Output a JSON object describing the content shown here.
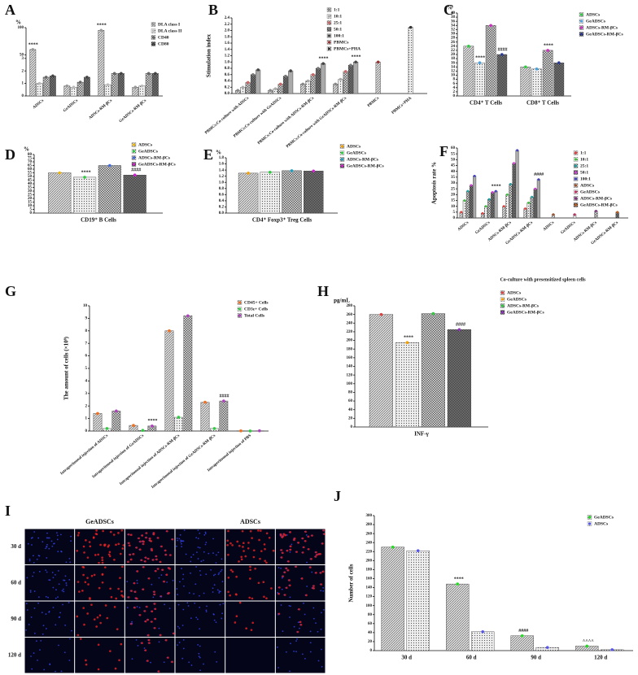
{
  "chart_data": [
    {
      "panel": "A",
      "type": "bar",
      "y_label": "%",
      "categories": [
        "ADSCs",
        "GeADSCs",
        "ADSCs-RM-βCs",
        "GeADSCs-RM-βCs"
      ],
      "series": [
        {
          "name": "DLA class I",
          "color": "#999999",
          "values": [
            60,
            0.8,
            95,
            0.7
          ]
        },
        {
          "name": "DLA class II",
          "color": "#bbbbbb",
          "values": [
            1,
            0.7,
            0.9,
            0.8
          ]
        },
        {
          "name": "CD40",
          "color": "#666666",
          "values": [
            1.5,
            1.1,
            1.8,
            1.8
          ]
        },
        {
          "name": "CD80",
          "color": "#444444",
          "values": [
            1.6,
            1.5,
            1.8,
            1.8
          ]
        }
      ],
      "ylim": [
        0,
        100
      ],
      "ybreak": [
        3,
        50
      ],
      "yticks": [
        0,
        1,
        2,
        3,
        50,
        100
      ],
      "annotations": [
        {
          "text": "****",
          "category": 0,
          "series": 0
        },
        {
          "text": "****",
          "category": 2,
          "series": 0
        }
      ]
    },
    {
      "panel": "B",
      "type": "bar",
      "y_label": "Stimulation index",
      "categories": [
        "PBMCs:Co-culture with ADSCs",
        "PBMCs:Co-culture with GeADSCs",
        "PBMCs:Co-culture with ADSCs-RM-βCs",
        "PBMCs:Co-culture with GeADSCs-RM-βCs",
        "PBMCs",
        "PBMCs+PHA"
      ],
      "series": [
        {
          "name": "1:1",
          "color": "#888888",
          "values": [
            0.1,
            0.1,
            0.3,
            0.3,
            null,
            null
          ]
        },
        {
          "name": "10:1",
          "color": "#aaaaaa",
          "values": [
            0.2,
            0.15,
            0.4,
            0.45,
            null,
            null
          ]
        },
        {
          "name": "25:1",
          "color": "#cc6666",
          "values": [
            0.35,
            0.3,
            0.6,
            0.7,
            null,
            null
          ]
        },
        {
          "name": "50:1",
          "color": "#777777",
          "values": [
            0.6,
            0.55,
            0.8,
            0.9,
            null,
            null
          ]
        },
        {
          "name": "100:1",
          "color": "#444444",
          "values": [
            0.75,
            0.72,
            0.95,
            1.0,
            null,
            null
          ]
        },
        {
          "name": "PBMCs",
          "color": "#993333",
          "values": [
            null,
            null,
            null,
            null,
            1.0,
            null
          ]
        },
        {
          "name": "PBMCs+PHA",
          "color": "#333333",
          "values": [
            null,
            null,
            null,
            null,
            null,
            2.1
          ]
        }
      ],
      "ylim": [
        0,
        2.4
      ],
      "yticks": [
        {
          "value": 0,
          "label": "0.0"
        },
        0.2,
        0.4,
        0.6,
        0.8,
        {
          "value": 1,
          "label": "1.0"
        },
        1.2,
        1.4,
        1.6,
        1.8,
        {
          "value": 2,
          "label": "2.0"
        },
        2.2,
        2.4
      ],
      "annotations": [
        {
          "text": "****",
          "category": 2,
          "series": 4
        },
        {
          "text": "****",
          "category": 3,
          "series": 4
        }
      ]
    },
    {
      "panel": "C",
      "type": "bar",
      "y_label": "%",
      "categories": [
        "CD4⁺ T Cells",
        "CD8⁺ T Cells"
      ],
      "series": [
        {
          "name": "ADSCs",
          "color": "#2ecc40",
          "values": [
            24,
            14
          ]
        },
        {
          "name": "GeADSCs",
          "color": "#4aa3df",
          "values": [
            16,
            13
          ]
        },
        {
          "name": "ADSCs-RM-βCs",
          "color": "#d030c0",
          "values": [
            34,
            22
          ]
        },
        {
          "name": "GeADSCs-RM-βCs",
          "color": "#2a3a9a",
          "values": [
            20,
            16
          ]
        }
      ],
      "ylim": [
        0,
        40
      ],
      "yticks": [
        0,
        2,
        4,
        6,
        8,
        10,
        12,
        14,
        16,
        18,
        20,
        22,
        24,
        26,
        28,
        30,
        32,
        34,
        36,
        38,
        40
      ],
      "annotations": [
        {
          "text": "****",
          "category": 0,
          "series": 1
        },
        {
          "text": "####",
          "category": 0,
          "series": 3
        },
        {
          "text": "****",
          "category": 1,
          "series": 2
        }
      ]
    },
    {
      "panel": "D",
      "type": "bar",
      "y_label": "%",
      "categories": [
        "CD19⁺ B Cells"
      ],
      "series": [
        {
          "name": "ADSCs",
          "color": "#f5b700",
          "values": [
            55
          ]
        },
        {
          "name": "GeADSCs",
          "color": "#2ecc40",
          "values": [
            49
          ]
        },
        {
          "name": "ADSCs-RM-βCs",
          "color": "#4169e1",
          "values": [
            65
          ]
        },
        {
          "name": "GeADSCs-RM-βCs",
          "color": "#d020d0",
          "values": [
            52
          ]
        }
      ],
      "ylim": [
        0,
        80
      ],
      "yticks": [
        0,
        5,
        10,
        15,
        20,
        25,
        30,
        35,
        40,
        45,
        50,
        55,
        60,
        65,
        70,
        75,
        80
      ],
      "annotations": [
        {
          "text": "****",
          "category": 0,
          "series": 1
        },
        {
          "text": "####",
          "category": 0,
          "series": 3
        }
      ]
    },
    {
      "panel": "E",
      "type": "bar",
      "y_label": "%",
      "categories": [
        "CD4⁺ Foxp3⁺ Treg Cells"
      ],
      "series": [
        {
          "name": "ADSCs",
          "color": "#f5a000",
          "values": [
            1.3
          ]
        },
        {
          "name": "GeADSCs",
          "color": "#2ecc40",
          "values": [
            1.33
          ]
        },
        {
          "name": "ADSCs-RM-βCs",
          "color": "#1fa0c0",
          "values": [
            1.38
          ]
        },
        {
          "name": "GeADSCs-RM-βCs",
          "color": "#d020d0",
          "values": [
            1.37
          ]
        }
      ],
      "ylim": [
        0,
        1.8
      ],
      "yticks": [
        {
          "value": 0,
          "label": "0.0"
        },
        0.2,
        0.4,
        0.6,
        0.8,
        {
          "value": 1,
          "label": "1.0"
        },
        1.2,
        1.4,
        1.6,
        1.8
      ],
      "annotations": []
    },
    {
      "panel": "F",
      "type": "bar",
      "y_label": "Apoptosis rate %",
      "x_label": "Co-culture with presensitized spleen cells",
      "categories": [
        "ADSCs",
        "GeADSCs",
        "ADSCs-RM-βCs",
        "GeADSCs-RM-βCs",
        "ADSCs",
        "GeADSCs",
        "ADSCs-RM-βCs",
        "GeADSCs-RM-βCs"
      ],
      "series": [
        {
          "name": "1:1",
          "color": "#e04040",
          "values": [
            5,
            4,
            10,
            8,
            null,
            null,
            null,
            null
          ]
        },
        {
          "name": "10:1",
          "color": "#40c040",
          "values": [
            15,
            10,
            20,
            13,
            null,
            null,
            null,
            null
          ]
        },
        {
          "name": "25:1",
          "color": "#20a0a0",
          "values": [
            23,
            16,
            29,
            18,
            null,
            null,
            null,
            null
          ]
        },
        {
          "name": "50:1",
          "color": "#d040d0",
          "values": [
            28,
            22,
            47,
            25,
            null,
            null,
            null,
            null
          ]
        },
        {
          "name": "100:1",
          "color": "#4040c0",
          "values": [
            36,
            23,
            58,
            33,
            null,
            null,
            null,
            null
          ]
        },
        {
          "name": "ADSCs",
          "color": "#a0522d",
          "values": [
            null,
            null,
            null,
            null,
            3,
            null,
            null,
            null
          ]
        },
        {
          "name": "GeADSCs",
          "color": "#c03060",
          "values": [
            null,
            null,
            null,
            null,
            null,
            3,
            null,
            null
          ]
        },
        {
          "name": "ADSCs-RM-βCs",
          "color": "#803080",
          "values": [
            null,
            null,
            null,
            null,
            null,
            null,
            6,
            null
          ]
        },
        {
          "name": "GeADSCs-RM-βCs",
          "color": "#c06020",
          "values": [
            null,
            null,
            null,
            null,
            null,
            null,
            null,
            5
          ]
        }
      ],
      "ylim": [
        0,
        60
      ],
      "yticks": [
        0,
        5,
        10,
        15,
        20,
        25,
        30,
        35,
        40,
        45,
        50,
        55,
        60
      ],
      "annotations": [
        {
          "text": "****",
          "category": 1,
          "series": 4
        },
        {
          "text": "####",
          "category": 3,
          "series": 4
        }
      ]
    },
    {
      "panel": "G",
      "type": "bar",
      "y_label": "The amount of cells (×10⁸)",
      "categories": [
        "Intraperitoneal injection of ADSCs",
        "Intraperitoneal injection of GeADSCs",
        "Intraperitoneal injection of ADSCs-RM-βCs",
        "Intraperitoneal injection of GeADSCs-RM-βCs",
        "Intraperitoneal injection of PBS"
      ],
      "series": [
        {
          "name": "CD45+ Cells",
          "color": "#f07020",
          "values": [
            1.4,
            0.45,
            8,
            2.3,
            0.015
          ]
        },
        {
          "name": "CD3ε+ Cells",
          "color": "#2ecc40",
          "values": [
            0.2,
            0.05,
            1.1,
            0.2,
            0.005
          ]
        },
        {
          "name": "Total Cells",
          "color": "#b040c0",
          "values": [
            1.6,
            0.4,
            9.2,
            2.4,
            0.02
          ]
        }
      ],
      "ylim": [
        0,
        10
      ],
      "yticks": [
        0,
        1,
        2,
        3,
        4,
        5,
        6,
        7,
        8,
        9,
        10
      ],
      "annotations": [
        {
          "text": "****",
          "category": 1,
          "series": 2
        },
        {
          "text": "####",
          "category": 3,
          "series": 2
        }
      ]
    },
    {
      "panel": "H",
      "type": "bar",
      "y_label": "pg/mL",
      "categories": [
        "INF-γ"
      ],
      "series": [
        {
          "name": "ADSCs",
          "color": "#e04040",
          "values": [
            260
          ]
        },
        {
          "name": "GeADSCs",
          "color": "#f5a000",
          "values": [
            195
          ]
        },
        {
          "name": "ADSCs-RM-βCs",
          "color": "#2ecc40",
          "values": [
            262
          ]
        },
        {
          "name": "GeADSCs-RM-βCs",
          "color": "#9030c0",
          "values": [
            225
          ]
        }
      ],
      "ylim": [
        0,
        280
      ],
      "yticks": [
        0,
        20,
        40,
        60,
        80,
        100,
        120,
        140,
        160,
        180,
        200,
        220,
        240,
        260,
        280
      ],
      "annotations": [
        {
          "text": "****",
          "category": 0,
          "series": 1
        },
        {
          "text": "####",
          "category": 0,
          "series": 3
        }
      ]
    },
    {
      "panel": "I",
      "type": "image-grid",
      "column_labels": [
        "GeADSCs",
        "ADSCs"
      ],
      "row_labels": [
        "30 d",
        "60 d",
        "90 d",
        "120 d"
      ]
    },
    {
      "panel": "J",
      "type": "bar",
      "y_label": "Number of cells",
      "categories": [
        "30 d",
        "60 d",
        "90 d",
        "120 d"
      ],
      "series": [
        {
          "name": "GeADSCs",
          "color": "#22dd22",
          "values": [
            230,
            148,
            33,
            10
          ]
        },
        {
          "name": "ADSCs",
          "color": "#5555ee",
          "values": [
            222,
            42,
            7,
            2
          ]
        }
      ],
      "ylim": [
        0,
        300
      ],
      "yticks": [
        0,
        20,
        40,
        60,
        80,
        100,
        120,
        140,
        160,
        180,
        200,
        220,
        240,
        260,
        280,
        300
      ],
      "annotations": [
        {
          "text": "****",
          "category": 1,
          "series": 0
        },
        {
          "text": "####",
          "category": 2,
          "series": 0
        },
        {
          "text": "^^^^",
          "category": 3,
          "series": 0
        }
      ]
    }
  ]
}
